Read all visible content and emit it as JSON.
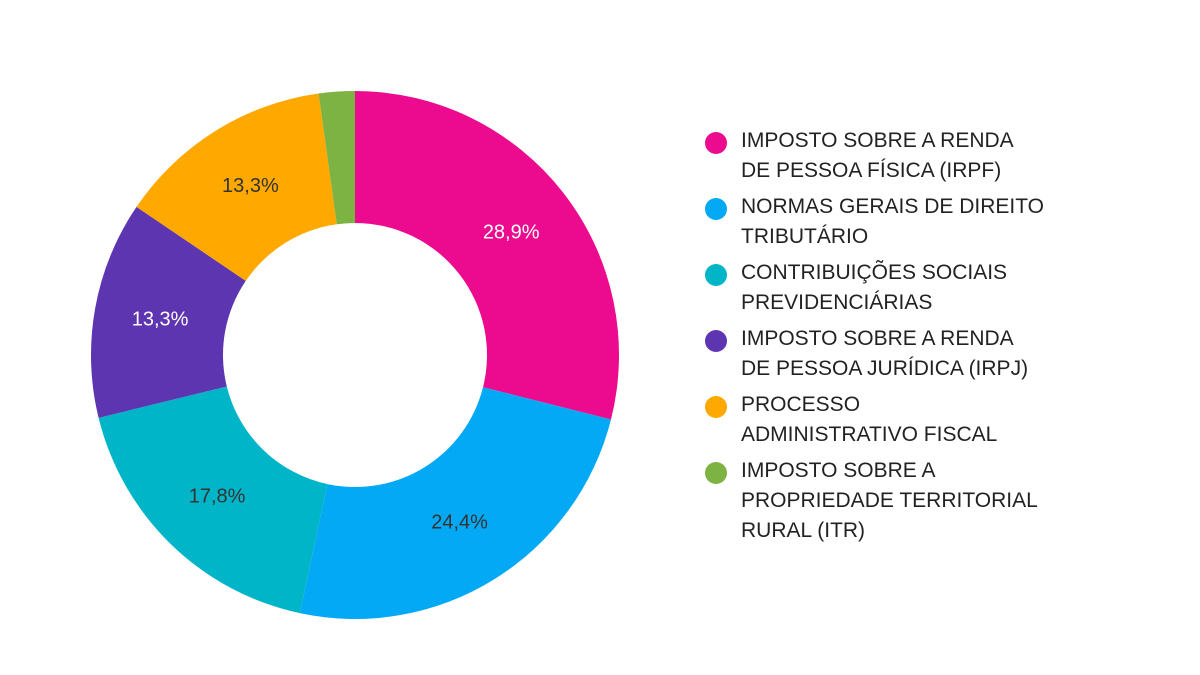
{
  "chart_data": {
    "type": "pie",
    "donut": true,
    "title": "",
    "legend_position": "right",
    "series": [
      {
        "name": "IMPOSTO SOBRE A RENDA\nDE PESSOA FÍSICA (IRPF)",
        "value": 28.9,
        "label": "28,9%",
        "color": "#ec0b8f",
        "label_color": "#ffffff"
      },
      {
        "name": "NORMAS GERAIS DE DIREITO\nTRIBUTÁRIO",
        "value": 24.4,
        "label": "24,4%",
        "color": "#03a9f4",
        "label_color": "#333333"
      },
      {
        "name": "CONTRIBUIÇÕES SOCIAIS\nPREVIDENCIÁRIAS",
        "value": 17.8,
        "label": "17,8%",
        "color": "#00b5c8",
        "label_color": "#333333"
      },
      {
        "name": "IMPOSTO SOBRE A RENDA\nDE PESSOA JURÍDICA (IRPJ)",
        "value": 13.3,
        "label": "13,3%",
        "color": "#5e35b1",
        "label_color": "#ffffff"
      },
      {
        "name": "PROCESSO\nADMINISTRATIVO FISCAL",
        "value": 13.3,
        "label": "13,3%",
        "color": "#ffa800",
        "label_color": "#333333"
      },
      {
        "name": "IMPOSTO SOBRE A\nPROPRIEDADE TERRITORIAL\nRURAL (ITR)",
        "value": 2.2,
        "label": "",
        "color": "#7cb342",
        "label_color": "#333333"
      }
    ]
  }
}
